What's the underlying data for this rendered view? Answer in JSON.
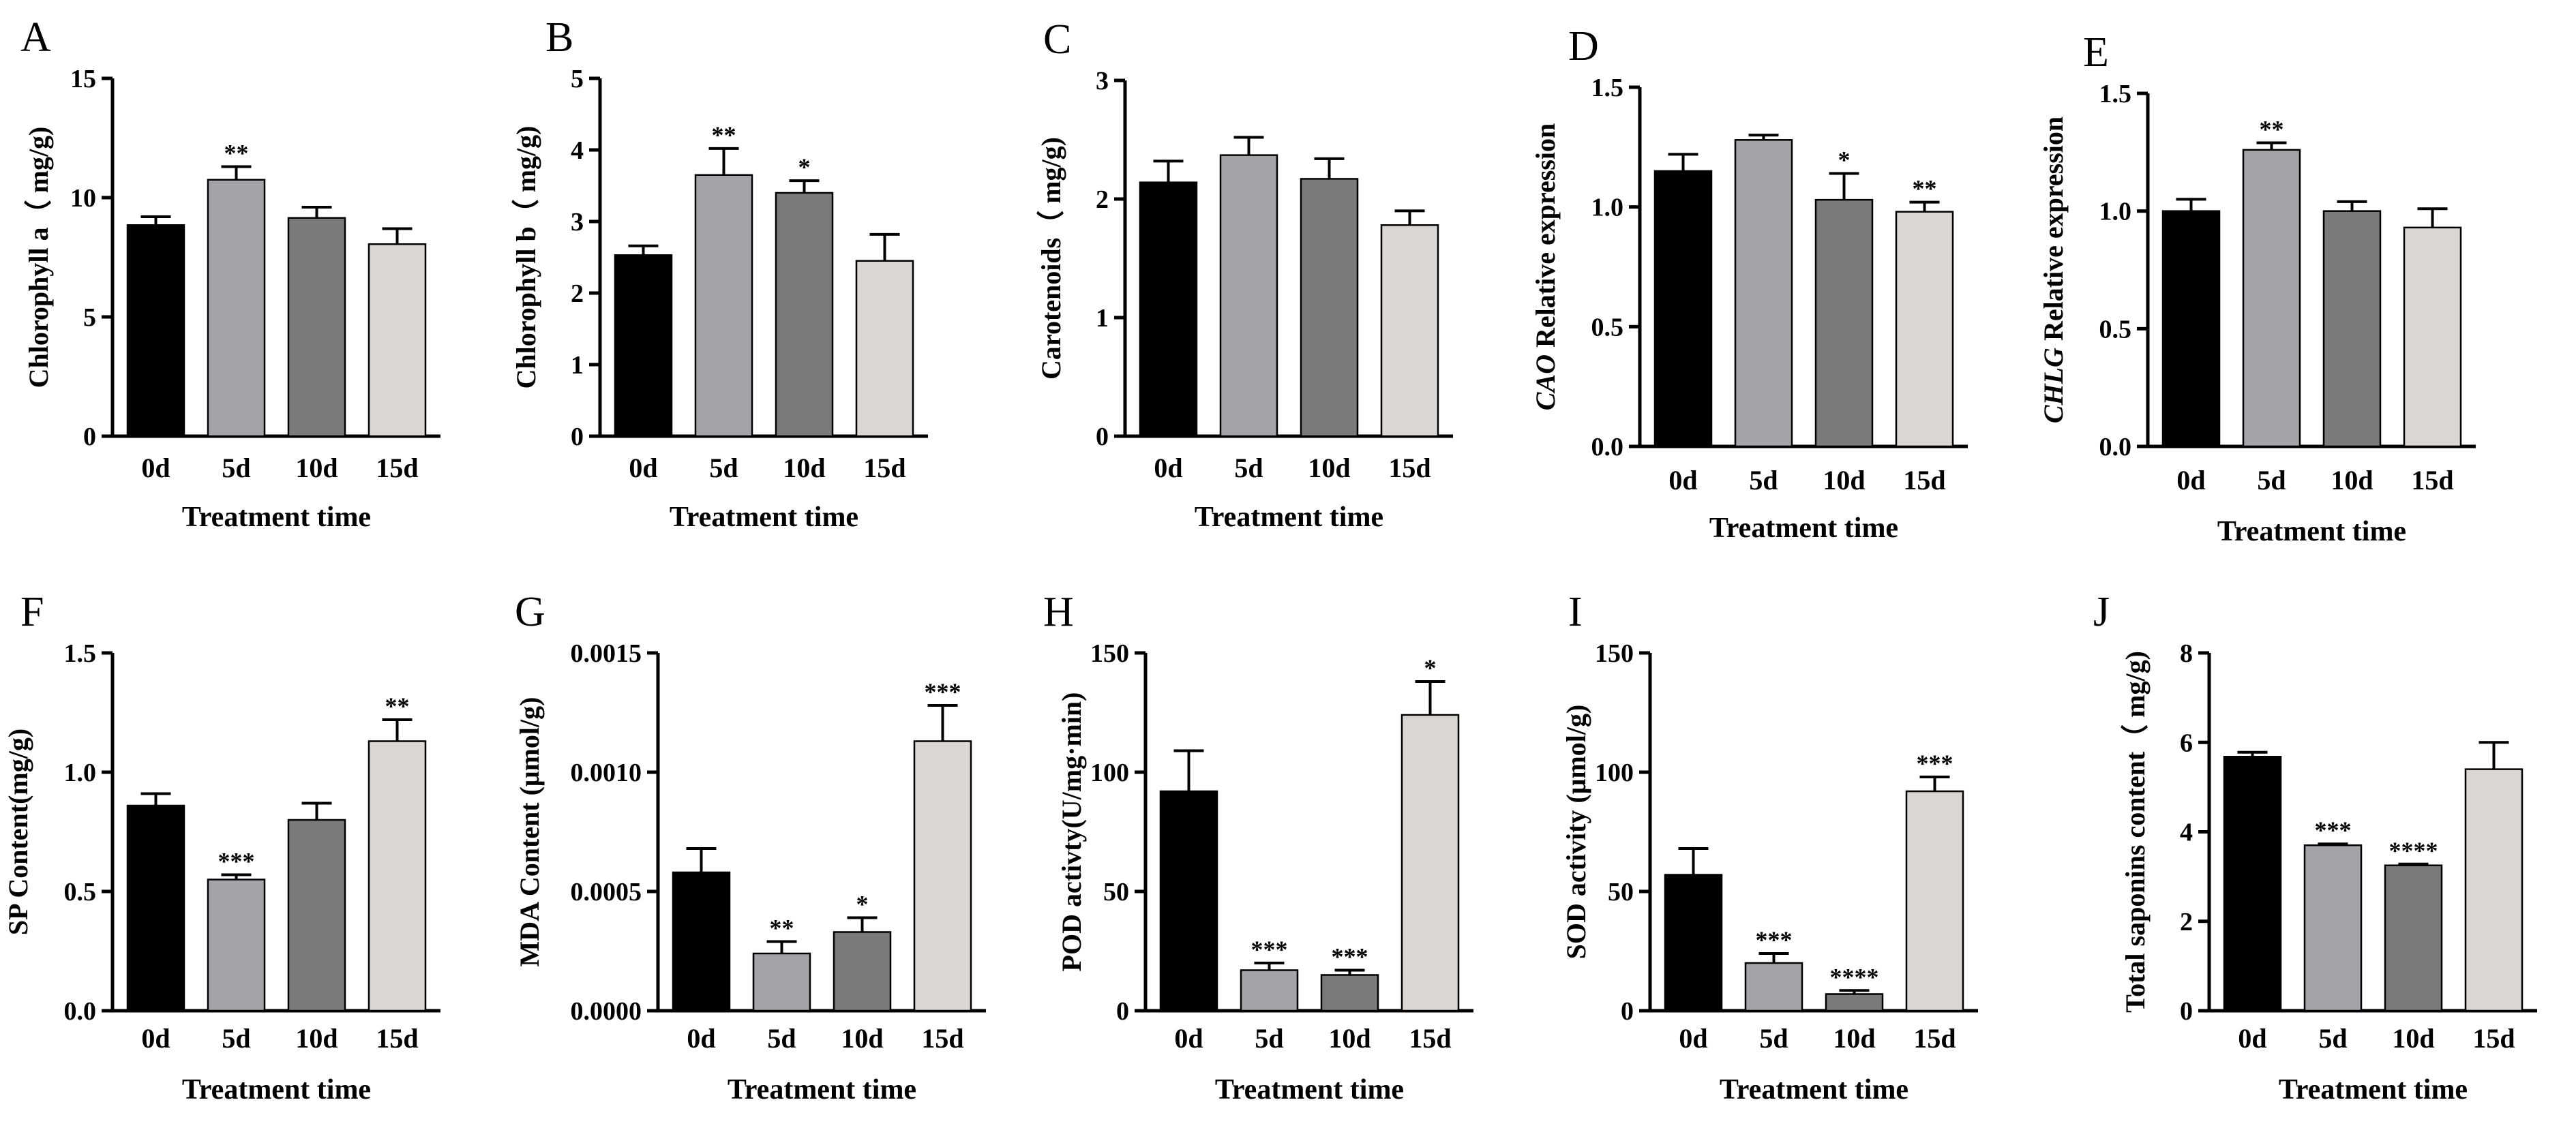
{
  "figure": {
    "colors": {
      "0d": "#000000",
      "5d": "#a3a3a8",
      "10d": "#7a7a7a",
      "15d": "#d9d6d3"
    }
  },
  "chart_data": [
    {
      "letter": "A",
      "type": "bar",
      "categories": [
        "0d",
        "5d",
        "10d",
        "15d"
      ],
      "values": [
        8.85,
        10.75,
        9.15,
        8.05
      ],
      "errors": [
        0.35,
        0.55,
        0.45,
        0.65
      ],
      "significance": [
        "",
        "**",
        "",
        ""
      ],
      "ylim": [
        0,
        15
      ],
      "yticks": [
        "0",
        "5",
        "10",
        "15"
      ],
      "ylabel": "Chlorophyll a（ mg/g)",
      "ylabel_italic": "",
      "xlabel": "Treatment time"
    },
    {
      "letter": "B",
      "type": "bar",
      "categories": [
        "0d",
        "5d",
        "10d",
        "15d"
      ],
      "values": [
        2.53,
        3.65,
        3.4,
        2.45
      ],
      "errors": [
        0.13,
        0.37,
        0.17,
        0.37
      ],
      "significance": [
        "",
        "**",
        "*",
        ""
      ],
      "ylim": [
        0,
        5
      ],
      "yticks": [
        "0",
        "1",
        "2",
        "3",
        "4",
        "5"
      ],
      "ylabel": "Chlorophyll b（ mg/g)",
      "ylabel_italic": "",
      "xlabel": "Treatment time"
    },
    {
      "letter": "C",
      "type": "bar",
      "categories": [
        "0d",
        "5d",
        "10d",
        "15d"
      ],
      "values": [
        2.14,
        2.37,
        2.17,
        1.78
      ],
      "errors": [
        0.18,
        0.15,
        0.17,
        0.12
      ],
      "significance": [
        "",
        "",
        "",
        ""
      ],
      "ylim": [
        0,
        3
      ],
      "yticks": [
        "0",
        "1",
        "2",
        "3"
      ],
      "ylabel": "Carotenoids（ mg/g)",
      "ylabel_italic": "",
      "xlabel": "Treatment time"
    },
    {
      "letter": "D",
      "type": "bar",
      "categories": [
        "0d",
        "5d",
        "10d",
        "15d"
      ],
      "values": [
        1.15,
        1.28,
        1.03,
        0.98
      ],
      "errors": [
        0.07,
        0.02,
        0.11,
        0.04
      ],
      "significance": [
        "",
        "",
        "*",
        "**"
      ],
      "ylim": [
        0,
        1.5
      ],
      "yticks": [
        "0.0",
        "0.5",
        "1.0",
        "1.5"
      ],
      "ylabel": " Relative expression",
      "ylabel_italic": "CAO",
      "xlabel": "Treatment time"
    },
    {
      "letter": "E",
      "type": "bar",
      "categories": [
        "0d",
        "5d",
        "10d",
        "15d"
      ],
      "values": [
        1.0,
        1.26,
        1.0,
        0.93
      ],
      "errors": [
        0.05,
        0.03,
        0.04,
        0.08
      ],
      "significance": [
        "",
        "**",
        "",
        ""
      ],
      "ylim": [
        0,
        1.5
      ],
      "yticks": [
        "0.0",
        "0.5",
        "1.0",
        "1.5"
      ],
      "ylabel": " Relative expression",
      "ylabel_italic": "CHLG",
      "xlabel": "Treatment time"
    },
    {
      "letter": "F",
      "type": "bar",
      "categories": [
        "0d",
        "5d",
        "10d",
        "15d"
      ],
      "values": [
        0.86,
        0.55,
        0.8,
        1.13
      ],
      "errors": [
        0.05,
        0.02,
        0.07,
        0.09
      ],
      "significance": [
        "",
        "***",
        "",
        "**"
      ],
      "ylim": [
        0,
        1.5
      ],
      "yticks": [
        "0.0",
        "0.5",
        "1.0",
        "1.5"
      ],
      "ylabel": "SP  Content(mg/g)",
      "ylabel_italic": "",
      "xlabel": "Treatment time"
    },
    {
      "letter": "G",
      "type": "bar",
      "categories": [
        "0d",
        "5d",
        "10d",
        "15d"
      ],
      "values": [
        0.00058,
        0.00024,
        0.00033,
        0.00113
      ],
      "errors": [
        0.0001,
        5e-05,
        6e-05,
        0.00015
      ],
      "significance": [
        "",
        "**",
        "*",
        "***"
      ],
      "ylim": [
        0,
        0.0015
      ],
      "yticks": [
        "0.0000",
        "0.0005",
        "0.0010",
        "0.0015"
      ],
      "ylabel": "MDA Content (μmol/g)",
      "ylabel_italic": "",
      "xlabel": "Treatment time"
    },
    {
      "letter": "H",
      "type": "bar",
      "categories": [
        "0d",
        "5d",
        "10d",
        "15d"
      ],
      "values": [
        92,
        17,
        15,
        124
      ],
      "errors": [
        17,
        3,
        2,
        14
      ],
      "significance": [
        "",
        "***",
        "***",
        "*"
      ],
      "ylim": [
        0,
        150
      ],
      "yticks": [
        "0",
        "50",
        "100",
        "150"
      ],
      "ylabel": "POD activty(U/mg·min)",
      "ylabel_italic": "",
      "xlabel": "Treatment time"
    },
    {
      "letter": "I",
      "type": "bar",
      "categories": [
        "0d",
        "5d",
        "10d",
        "15d"
      ],
      "values": [
        57,
        20,
        7,
        92
      ],
      "errors": [
        11,
        4,
        1.5,
        6
      ],
      "significance": [
        "",
        "***",
        "****",
        "***"
      ],
      "ylim": [
        0,
        150
      ],
      "yticks": [
        "0",
        "50",
        "100",
        "150"
      ],
      "ylabel": "SOD activity (μmol/g)",
      "ylabel_italic": "",
      "xlabel": "Treatment time"
    },
    {
      "letter": "J",
      "type": "bar",
      "categories": [
        "0d",
        "5d",
        "10d",
        "15d"
      ],
      "values": [
        5.68,
        3.7,
        3.25,
        5.4
      ],
      "errors": [
        0.1,
        0.03,
        0.03,
        0.6
      ],
      "significance": [
        "",
        "***",
        "****",
        ""
      ],
      "ylim": [
        0,
        8
      ],
      "yticks": [
        "0",
        "2",
        "4",
        "6",
        "8"
      ],
      "ylabel": "Total saponins content（ mg/g)",
      "ylabel_italic": "",
      "xlabel": "Treatment time"
    }
  ]
}
